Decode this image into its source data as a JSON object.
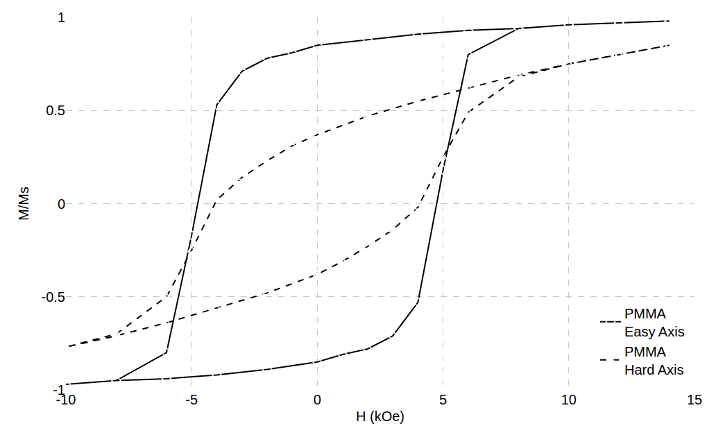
{
  "chart_data": {
    "type": "line",
    "x_label": "H (kOe)",
    "y_label": "M/Ms",
    "xlim": [
      -10,
      15
    ],
    "xticks": [
      -10,
      -5,
      0,
      5,
      10,
      15
    ],
    "ylim": [
      -1,
      1
    ],
    "yticks": [
      -1,
      -0.5,
      0,
      0.5,
      1
    ],
    "grid": true,
    "legend": "lower right",
    "series": [
      {
        "name": "PMMA Easy Axis",
        "color": "#000000",
        "marker": "diamond-open",
        "line_style": "solid",
        "x": [
          14,
          12,
          10,
          8,
          6,
          4,
          2,
          0,
          -1,
          -2,
          -3,
          -4,
          -5,
          -6,
          -8,
          -10,
          -8,
          -6,
          -4,
          -2,
          0,
          1,
          2,
          3,
          4,
          5,
          6,
          8,
          10,
          12,
          14
        ],
        "values": [
          0.98,
          0.97,
          0.96,
          0.94,
          0.93,
          0.91,
          0.88,
          0.85,
          0.81,
          0.78,
          0.71,
          0.53,
          -0.17,
          -0.8,
          -0.95,
          -0.97,
          -0.95,
          -0.94,
          -0.92,
          -0.89,
          -0.85,
          -0.81,
          -0.78,
          -0.71,
          -0.53,
          0.18,
          0.8,
          0.94,
          0.96,
          0.97,
          0.98
        ]
      },
      {
        "name": "PMMA Hard Axis",
        "color": "#000000",
        "marker": "triangle-up-open",
        "line_style": "dash",
        "x": [
          14,
          12,
          10,
          8,
          6,
          4,
          2,
          0,
          -1,
          -2,
          -3,
          -4,
          -5,
          -6,
          -8,
          -10,
          -8,
          -6,
          -4,
          -2,
          0,
          1,
          2,
          3,
          4,
          5,
          6,
          8,
          10,
          12,
          14
        ],
        "values": [
          0.85,
          0.8,
          0.75,
          0.69,
          0.62,
          0.55,
          0.47,
          0.37,
          0.31,
          0.23,
          0.14,
          0.02,
          -0.25,
          -0.5,
          -0.7,
          -0.77,
          -0.71,
          -0.64,
          -0.56,
          -0.48,
          -0.38,
          -0.31,
          -0.23,
          -0.14,
          -0.02,
          0.25,
          0.49,
          0.68,
          0.75,
          0.8,
          0.85
        ]
      }
    ]
  }
}
